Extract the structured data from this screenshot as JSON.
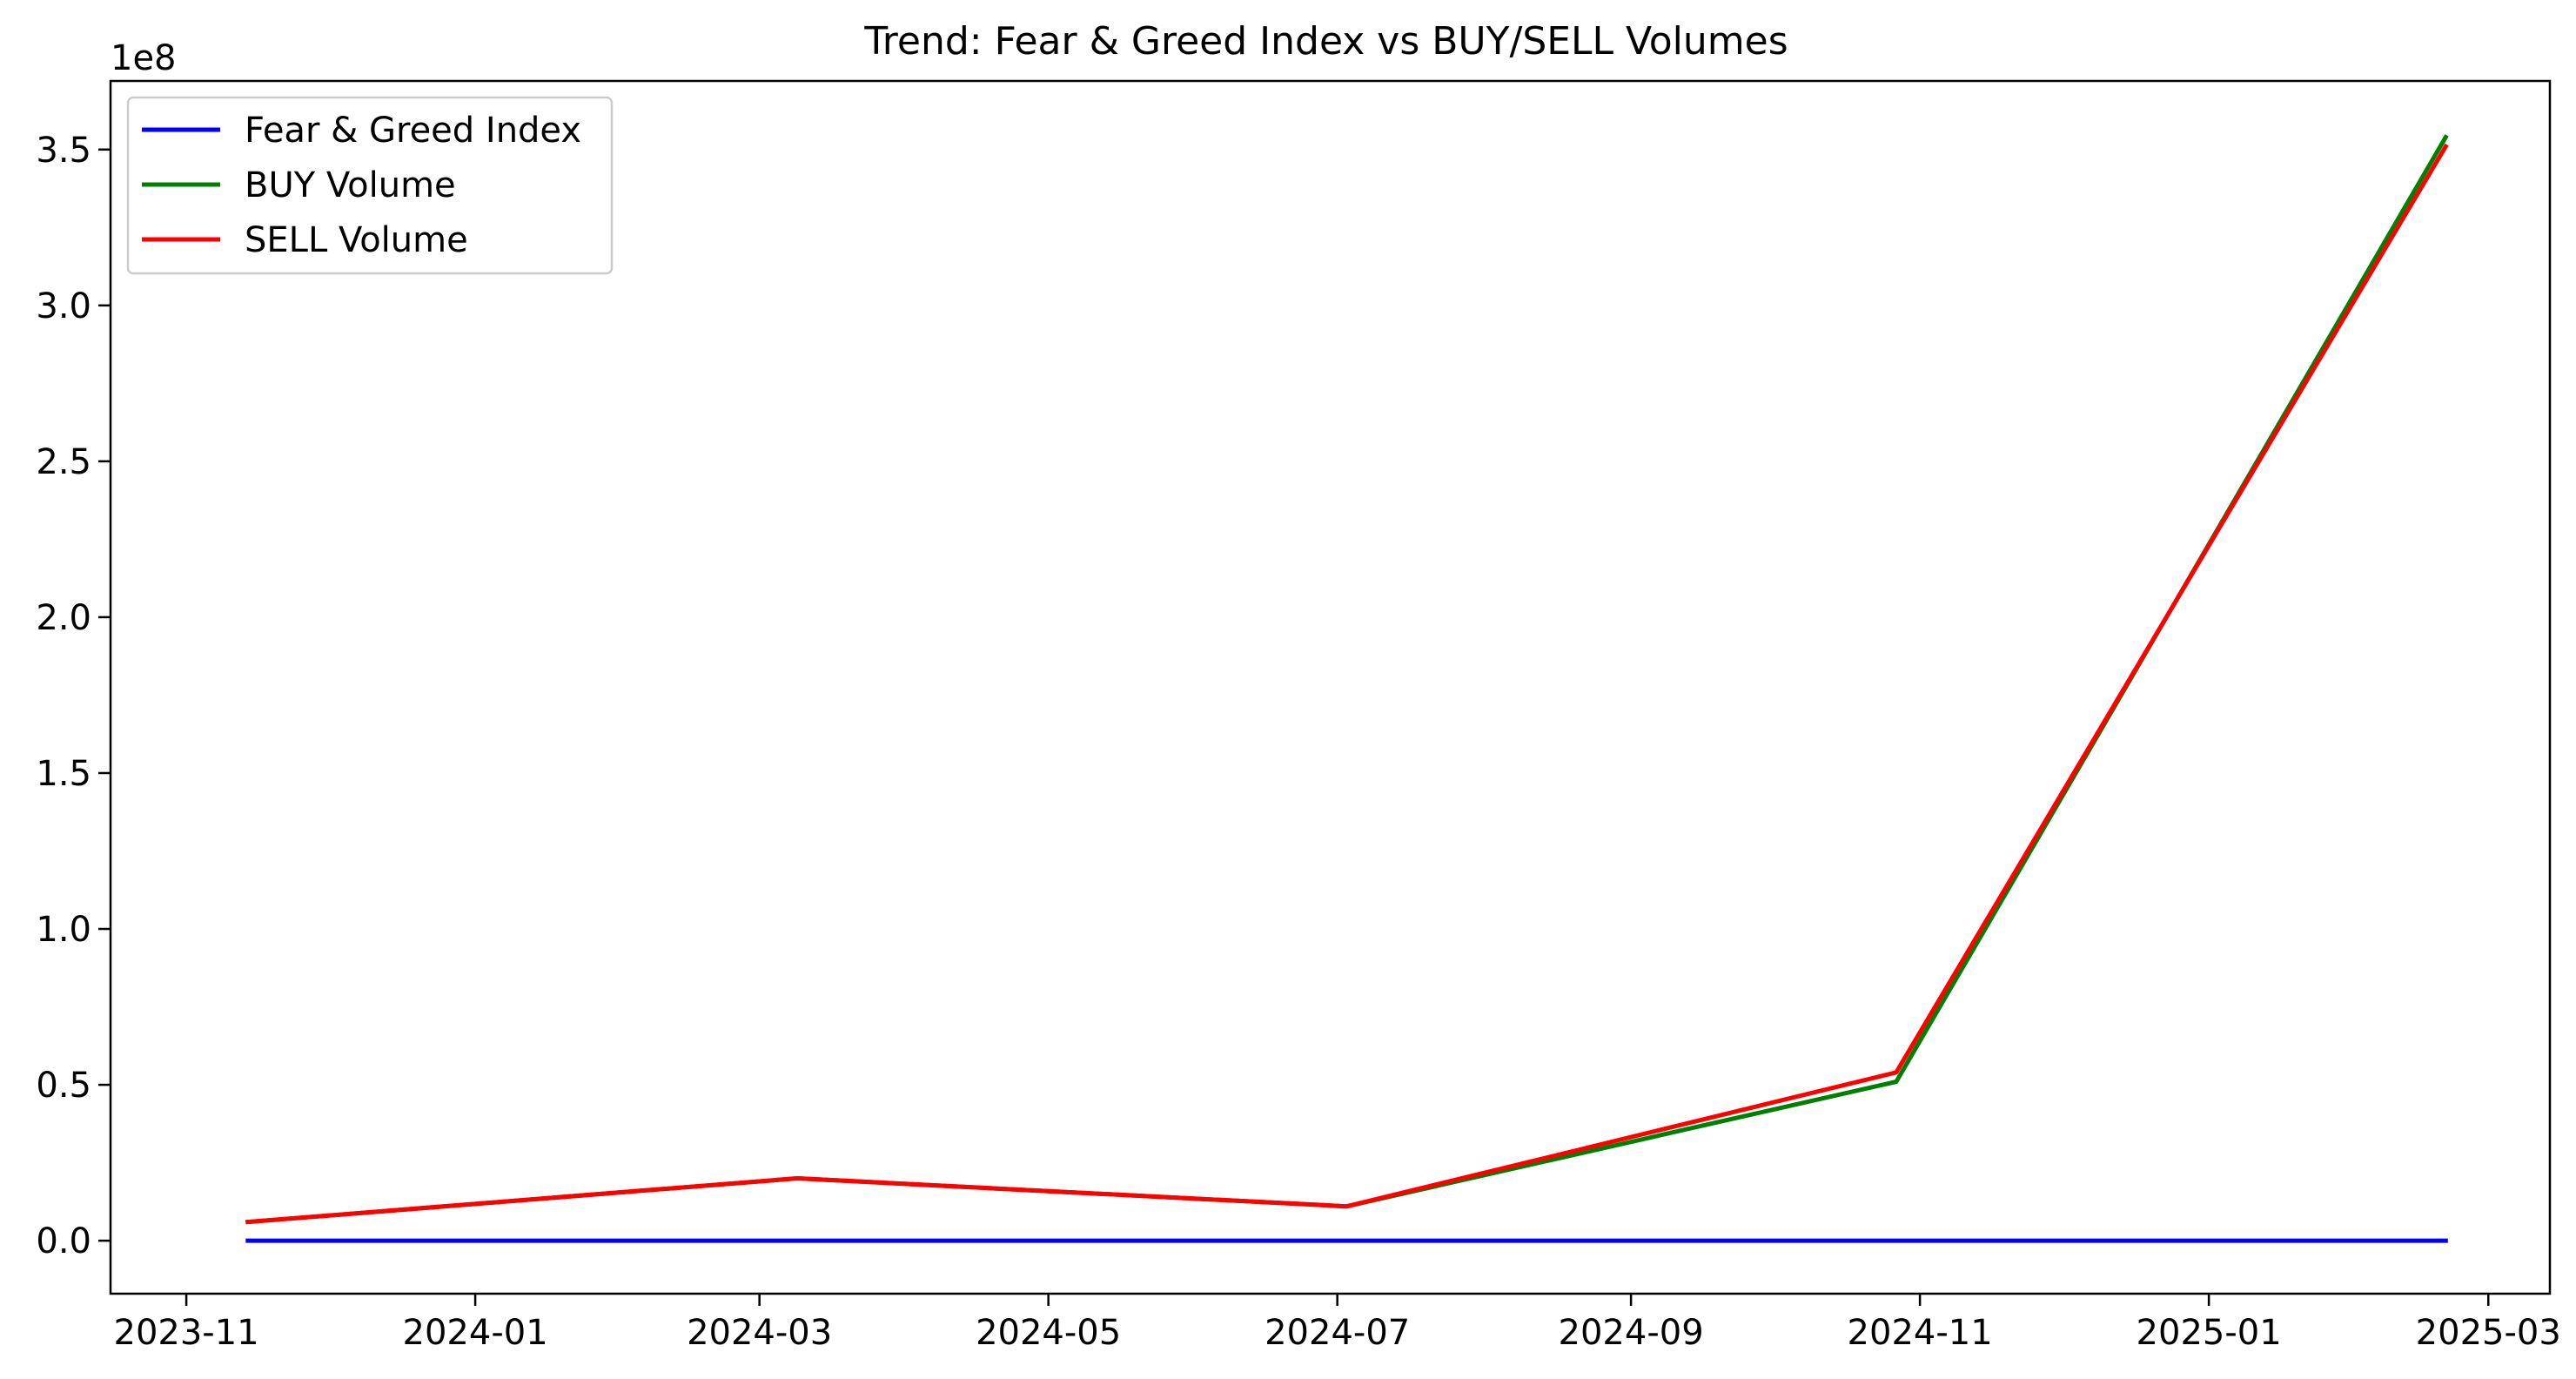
{
  "chart_data": {
    "type": "line",
    "title": "Trend: Fear & Greed Index vs BUY/SELL Volumes",
    "xlabel": "",
    "ylabel": "",
    "y_offset_label": "1e8",
    "x_axis_type": "date",
    "xlim": [
      "2023-10-16",
      "2025-03-14"
    ],
    "ylim": [
      -0.17,
      3.72
    ],
    "x_ticks": [
      "2023-11-01",
      "2024-01-01",
      "2024-03-01",
      "2024-05-01",
      "2024-07-01",
      "2024-09-01",
      "2024-11-01",
      "2025-01-01",
      "2025-03-01"
    ],
    "x_tick_labels": [
      "2023-11",
      "2024-01",
      "2024-03",
      "2024-05",
      "2024-07",
      "2024-09",
      "2024-11",
      "2025-01",
      "2025-03"
    ],
    "y_ticks": [
      0.0,
      0.5,
      1.0,
      1.5,
      2.0,
      2.5,
      3.0,
      3.5
    ],
    "y_tick_labels": [
      "0.0",
      "0.5",
      "1.0",
      "1.5",
      "2.0",
      "2.5",
      "3.0",
      "3.5"
    ],
    "x": [
      "2023-11-14",
      "2024-03-09",
      "2024-07-03",
      "2024-10-27",
      "2025-02-20"
    ],
    "series": [
      {
        "name": "Fear & Greed Index",
        "color": "#0000ff",
        "values": [
          0.0,
          0.0,
          0.0,
          0.0,
          0.0
        ]
      },
      {
        "name": "BUY Volume",
        "color": "#008000",
        "values": [
          0.06,
          0.2,
          0.11,
          0.51,
          3.54
        ]
      },
      {
        "name": "SELL Volume",
        "color": "#ff0000",
        "values": [
          0.06,
          0.2,
          0.11,
          0.54,
          3.51
        ]
      }
    ],
    "grid": false,
    "legend_position": "upper-left"
  }
}
